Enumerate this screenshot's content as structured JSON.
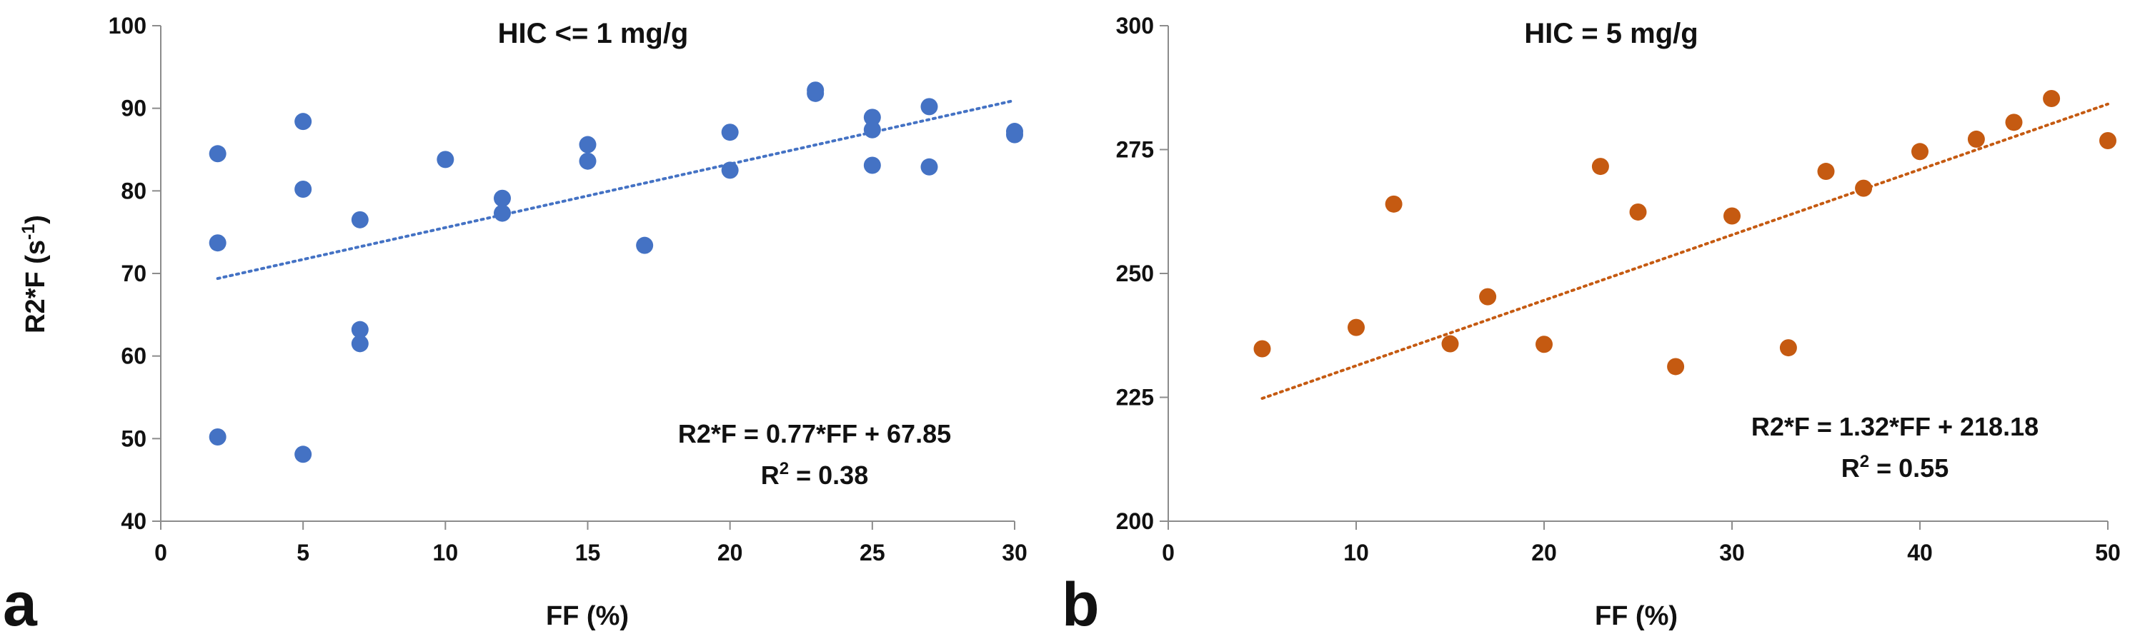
{
  "chart_data": [
    {
      "type": "scatter",
      "panel_label": "a",
      "title": "HIC <= 1 mg/g",
      "xlabel": "FF (%)",
      "ylabel": "R2*F (s",
      "ylabel_sup": "-1",
      "ylabel_close": ")",
      "xlim": [
        0,
        30
      ],
      "ylim": [
        40,
        100
      ],
      "x_ticks": [
        0,
        5,
        10,
        15,
        20,
        25,
        30
      ],
      "x_tick_labels": [
        "0",
        "5",
        "10",
        "15",
        "20",
        "25",
        "30"
      ],
      "y_ticks": [
        40,
        50,
        60,
        70,
        80,
        90,
        100
      ],
      "y_tick_labels": [
        "40",
        "50",
        "60",
        "70",
        "80",
        "90",
        "100"
      ],
      "marker_color": "#4472C4",
      "series": [
        {
          "name": "HIC <= 1 mg/g",
          "points": [
            [
              2,
              84.5
            ],
            [
              2,
              73.7
            ],
            [
              2,
              50.2
            ],
            [
              5,
              88.4
            ],
            [
              5,
              80.2
            ],
            [
              5,
              48.1
            ],
            [
              7,
              76.5
            ],
            [
              7,
              63.2
            ],
            [
              7,
              61.5
            ],
            [
              10,
              83.8
            ],
            [
              12,
              79.1
            ],
            [
              12,
              77.3
            ],
            [
              15,
              85.6
            ],
            [
              15,
              83.6
            ],
            [
              17,
              73.4
            ],
            [
              20,
              87.1
            ],
            [
              20,
              82.5
            ],
            [
              23,
              92.2
            ],
            [
              23,
              91.8
            ],
            [
              25,
              88.9
            ],
            [
              25,
              87.4
            ],
            [
              25,
              83.1
            ],
            [
              27,
              90.2
            ],
            [
              27,
              82.9
            ],
            [
              30,
              87.2
            ],
            [
              30,
              86.8
            ]
          ]
        }
      ],
      "trendline": {
        "slope": 0.77,
        "intercept": 67.85,
        "x_range": [
          2,
          30
        ]
      },
      "equation": "R2*F = 0.77*FF + 67.85",
      "r2_prefix": "R",
      "r2_sup": "2",
      "r2_value": " = 0.38"
    },
    {
      "type": "scatter",
      "panel_label": "b",
      "title": "HIC = 5 mg/g",
      "xlabel": "FF (%)",
      "xlim": [
        0,
        50
      ],
      "ylim": [
        200,
        300
      ],
      "x_ticks": [
        0,
        10,
        20,
        30,
        40,
        50
      ],
      "x_tick_labels": [
        "0",
        "10",
        "20",
        "30",
        "40",
        "50"
      ],
      "y_ticks": [
        200,
        225,
        250,
        275,
        300
      ],
      "y_tick_labels": [
        "200",
        "225",
        "250",
        "275",
        "300"
      ],
      "marker_color": "#C55A11",
      "series": [
        {
          "name": "HIC = 5 mg/g",
          "points": [
            [
              5,
              234.8
            ],
            [
              10,
              239.1
            ],
            [
              12,
              264.0
            ],
            [
              15,
              235.8
            ],
            [
              17,
              245.3
            ],
            [
              20,
              235.7
            ],
            [
              23,
              271.6
            ],
            [
              25,
              262.4
            ],
            [
              27,
              231.2
            ],
            [
              30,
              261.6
            ],
            [
              33,
              235.0
            ],
            [
              35,
              270.6
            ],
            [
              37,
              267.2
            ],
            [
              40,
              274.6
            ],
            [
              43,
              277.1
            ],
            [
              45,
              280.5
            ],
            [
              47,
              285.3
            ],
            [
              50,
              276.8
            ]
          ]
        }
      ],
      "trendline": {
        "slope": 1.32,
        "intercept": 218.18,
        "x_range": [
          5,
          50
        ]
      },
      "equation": "R2*F = 1.32*FF + 218.18",
      "r2_prefix": "R",
      "r2_sup": "2",
      "r2_value": " = 0.55"
    }
  ]
}
